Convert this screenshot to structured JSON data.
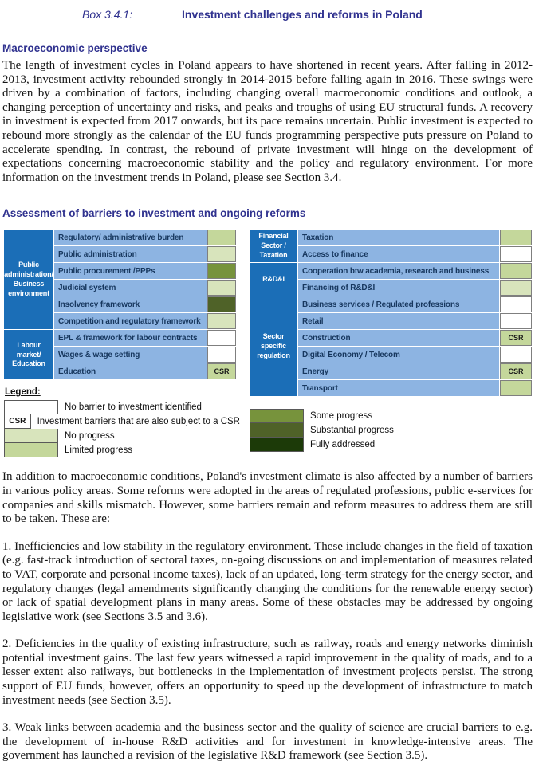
{
  "page": {
    "box_label": "Box 3.4.1:",
    "box_title": "Investment challenges and reforms in Poland"
  },
  "sections": {
    "macro_heading": "Macroeconomic perspective",
    "macro_paragraph": "The length of investment cycles in Poland appears to have shortened in recent years. After falling in 2012-2013, investment activity rebounded strongly in 2014-2015 before falling again in 2016. These swings were driven by a combination of factors, including changing overall macroeconomic conditions and outlook, a changing perception of uncertainty and risks, and peaks and troughs of using EU structural funds. A recovery in investment is expected from 2017 onwards, but its pace remains uncertain. Public investment is expected to rebound more strongly as the calendar of the EU funds programming perspective puts pressure on Poland to accelerate spending. In contrast, the rebound of private investment will hinge on the development of expectations concerning macroeconomic stability and the policy and regulatory environment. For more information on the investment trends in Poland, please see Section 3.4.",
    "barriers_heading": "Assessment of barriers to investment and ongoing reforms",
    "intro_paragraph": "In addition to macroeconomic conditions, Poland's investment climate is also affected by a number of barriers in various policy areas. Some reforms were adopted in the areas of regulated professions, public e-services for companies and skills mismatch. However, some barriers remain and reform measures to address them are still to be taken. These are:",
    "points": [
      "1. Inefficiencies and low stability in the regulatory environment. These include changes in the field of taxation (e.g. fast-track introduction of sectoral taxes, on-going discussions on and implementation of measures related to VAT, corporate and personal income taxes), lack of an updated, long-term strategy for the energy sector, and regulatory changes (legal amendments significantly changing the conditions for the renewable energy sector) or lack of spatial development plans in many areas. Some of these obstacles may be addressed by ongoing legislative work (see Sections 3.5 and 3.6).",
      "2. Deficiencies in the quality of existing infrastructure, such as railway, roads and energy networks diminish potential investment gains. The last few years witnessed a rapid improvement in the quality of roads, and to a lesser extent also railways, but bottlenecks in the implementation of investment projects persist. The strong support of EU funds, however, offers an opportunity to speed up the development of infrastructure to match investment needs (see Section 3.5).",
      "3. Weak links between academia and the business sector and the quality of science are crucial barriers to e.g. the development of in-house R&D activities and for investment in knowledge-intensive areas. The government has launched a revision of the legislative R&D framework (see Section 3.5)."
    ]
  },
  "matrix": {
    "csr_label": "CSR",
    "left": {
      "groups": [
        {
          "label": "Public administration/ Business environment",
          "span": 6
        },
        {
          "label": "Labour market/ Education",
          "span": 3
        }
      ],
      "rows": [
        {
          "label": "Regulatory/ administrative burden",
          "status": "limited",
          "csr": false
        },
        {
          "label": "Public administration",
          "status": "no_progress",
          "csr": false
        },
        {
          "label": "Public procurement /PPPs",
          "status": "some",
          "csr": false
        },
        {
          "label": "Judicial system",
          "status": "no_progress",
          "csr": false
        },
        {
          "label": "Insolvency framework",
          "status": "substantial",
          "csr": false
        },
        {
          "label": "Competition and regulatory framework",
          "status": "no_progress",
          "csr": false
        },
        {
          "label": "EPL & framework for labour contracts",
          "status": "white",
          "csr": false
        },
        {
          "label": "Wages & wage setting",
          "status": "white",
          "csr": false
        },
        {
          "label": "Education",
          "status": "limited",
          "csr": true
        }
      ]
    },
    "right": {
      "groups": [
        {
          "label": "Financial Sector / Taxation",
          "span": 2
        },
        {
          "label": "R&D&I",
          "span": 2
        },
        {
          "label": "Sector specific regulation",
          "span": 6
        }
      ],
      "rows": [
        {
          "label": "Taxation",
          "status": "limited",
          "csr": false
        },
        {
          "label": "Access to finance",
          "status": "white",
          "csr": false
        },
        {
          "label": "Cooperation btw academia, research and business",
          "status": "limited",
          "csr": false
        },
        {
          "label": "Financing of R&D&I",
          "status": "no_progress",
          "csr": false
        },
        {
          "label": "Business services / Regulated professions",
          "status": "white",
          "csr": false
        },
        {
          "label": "Retail",
          "status": "white",
          "csr": false
        },
        {
          "label": "Construction",
          "status": "limited",
          "csr": true
        },
        {
          "label": "Digital Economy / Telecom",
          "status": "white",
          "csr": false
        },
        {
          "label": "Energy",
          "status": "limited",
          "csr": true
        },
        {
          "label": "Transport",
          "status": "limited",
          "csr": false
        }
      ]
    }
  },
  "status_colors": {
    "white": "#FFFFFF",
    "no_progress": "#D8E4BC",
    "limited": "#C4D79B",
    "some": "#77933C",
    "substantial": "#4F6228",
    "fully": "#1C3A08"
  },
  "legend": {
    "title": "Legend:",
    "left_items": [
      {
        "swatch": "white",
        "swatch_text": "",
        "label": "No barrier to investment identified"
      },
      {
        "swatch": "white",
        "swatch_text": "CSR",
        "label": "Investment barriers that are also subject to a CSR"
      },
      {
        "swatch": "no_progress",
        "swatch_text": "",
        "label": "No progress"
      },
      {
        "swatch": "limited",
        "swatch_text": "",
        "label": "Limited progress"
      }
    ],
    "right_items": [
      {
        "swatch": "some",
        "swatch_text": "",
        "label": "Some progress"
      },
      {
        "swatch": "substantial",
        "swatch_text": "",
        "label": "Substantial progress"
      },
      {
        "swatch": "fully",
        "swatch_text": "",
        "label": "Fully addressed"
      }
    ]
  },
  "colors": {
    "heading_indigo": "#30328F",
    "category_blue": "#1B6EB7",
    "row_blue": "#8DB4E2",
    "row_text_navy": "#17375E",
    "status_border_grey": "#7F7F7F"
  }
}
